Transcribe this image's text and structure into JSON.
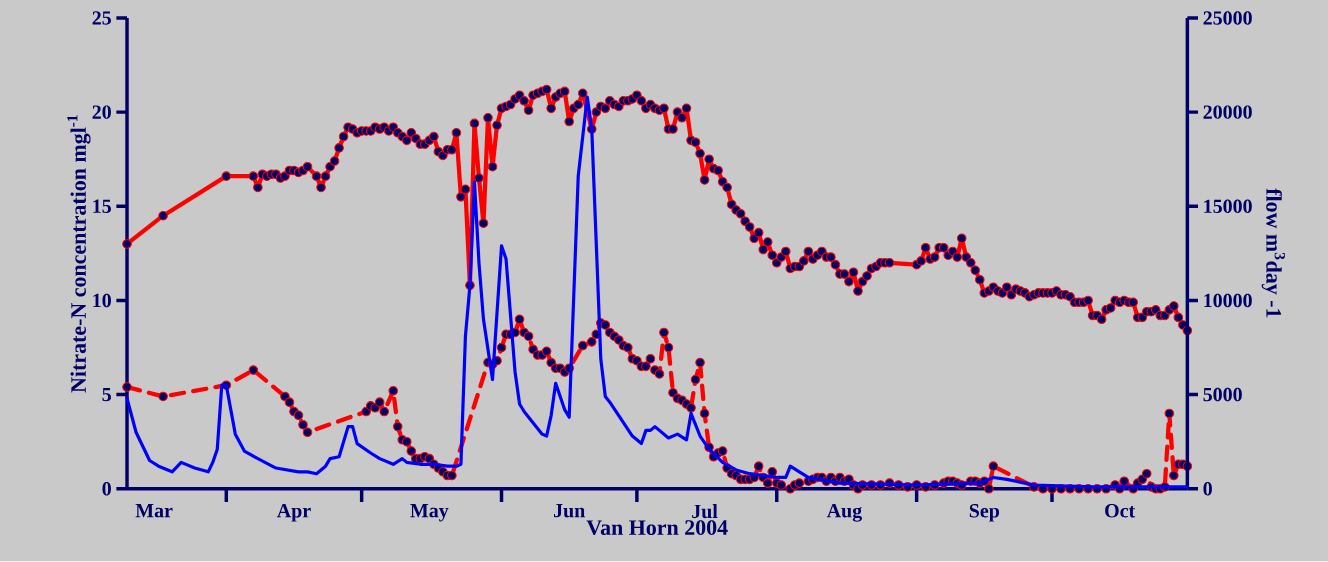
{
  "chart_data": {
    "type": "line",
    "xlabel": "Van Horn 2004",
    "ylabel": "Nitrate-N concentration mgl$^{-1}$",
    "y2label": "flow m$^{3}$day -1",
    "xlim": [
      "2004-03-10",
      "2004-10-31"
    ],
    "xticks": [
      {
        "value": "2004-03-16",
        "label": "Mar"
      },
      {
        "value": "2004-04-01",
        "label": null
      },
      {
        "value": "2004-04-16",
        "label": "Apr"
      },
      {
        "value": "2004-05-01",
        "label": null
      },
      {
        "value": "2004-05-16",
        "label": "May"
      },
      {
        "value": "2004-06-01",
        "label": null
      },
      {
        "value": "2004-06-16",
        "label": "Jun"
      },
      {
        "value": "2004-07-01",
        "label": null
      },
      {
        "value": "2004-07-16",
        "label": "Jul"
      },
      {
        "value": "2004-08-01",
        "label": null
      },
      {
        "value": "2004-08-16",
        "label": "Aug"
      },
      {
        "value": "2004-09-01",
        "label": null
      },
      {
        "value": "2004-09-16",
        "label": "Sep"
      },
      {
        "value": "2004-10-01",
        "label": null
      },
      {
        "value": "2004-10-16",
        "label": "Oct"
      }
    ],
    "ylim": [
      0,
      25
    ],
    "yticks": [
      0,
      5,
      10,
      15,
      20,
      25
    ],
    "y2lim": [
      0,
      25000
    ],
    "y2ticks": [
      0,
      5000,
      10000,
      15000,
      20000,
      25000
    ],
    "series": [
      {
        "color": "#ff0000",
        "marker": "circle",
        "line_style": "solid",
        "x": [
          "2004-03-10",
          "2004-03-18",
          "2004-04-01",
          "2004-04-07",
          "2004-04-08",
          "2004-04-09",
          "2004-04-10",
          "2004-04-11",
          "2004-04-12",
          "2004-04-13",
          "2004-04-14",
          "2004-04-15",
          "2004-04-16",
          "2004-04-17",
          "2004-04-18",
          "2004-04-19",
          "2004-04-21",
          "2004-04-22",
          "2004-04-23",
          "2004-04-24",
          "2004-04-25",
          "2004-04-26",
          "2004-04-27",
          "2004-04-28",
          "2004-04-29",
          "2004-04-30",
          "2004-05-01",
          "2004-05-02",
          "2004-05-03",
          "2004-05-04",
          "2004-05-05",
          "2004-05-06",
          "2004-05-07",
          "2004-05-08",
          "2004-05-09",
          "2004-05-10",
          "2004-05-11",
          "2004-05-12",
          "2004-05-13",
          "2004-05-14",
          "2004-05-15",
          "2004-05-16",
          "2004-05-17",
          "2004-05-18",
          "2004-05-19",
          "2004-05-20",
          "2004-05-21",
          "2004-05-22",
          "2004-05-23",
          "2004-05-24",
          "2004-05-25",
          "2004-05-26",
          "2004-05-27",
          "2004-05-28",
          "2004-05-29",
          "2004-05-30",
          "2004-05-31",
          "2004-06-01",
          "2004-06-02",
          "2004-06-03",
          "2004-06-04",
          "2004-06-05",
          "2004-06-06",
          "2004-06-07",
          "2004-06-08",
          "2004-06-09",
          "2004-06-10",
          "2004-06-11",
          "2004-06-12",
          "2004-06-13",
          "2004-06-14",
          "2004-06-15",
          "2004-06-16",
          "2004-06-17",
          "2004-06-18",
          "2004-06-19",
          "2004-06-21",
          "2004-06-22",
          "2004-06-23",
          "2004-06-24",
          "2004-06-25",
          "2004-06-26",
          "2004-06-27",
          "2004-06-28",
          "2004-06-29",
          "2004-06-30",
          "2004-07-01",
          "2004-07-02",
          "2004-07-03",
          "2004-07-04",
          "2004-07-05",
          "2004-07-06",
          "2004-07-07",
          "2004-07-08",
          "2004-07-09",
          "2004-07-10",
          "2004-07-11",
          "2004-07-12",
          "2004-07-13",
          "2004-07-14",
          "2004-07-15",
          "2004-07-16",
          "2004-07-17",
          "2004-07-18",
          "2004-07-19",
          "2004-07-20",
          "2004-07-21",
          "2004-07-22",
          "2004-07-23",
          "2004-07-24",
          "2004-07-25",
          "2004-07-26",
          "2004-07-27",
          "2004-07-28",
          "2004-07-29",
          "2004-07-30",
          "2004-07-31",
          "2004-08-01",
          "2004-08-02",
          "2004-08-03",
          "2004-08-04",
          "2004-08-05",
          "2004-08-06",
          "2004-08-07",
          "2004-08-08",
          "2004-08-09",
          "2004-08-10",
          "2004-08-11",
          "2004-08-12",
          "2004-08-13",
          "2004-08-14",
          "2004-08-15",
          "2004-08-16",
          "2004-08-17",
          "2004-08-18",
          "2004-08-19",
          "2004-08-20",
          "2004-08-21",
          "2004-08-22",
          "2004-08-23",
          "2004-08-24",
          "2004-08-25",
          "2004-08-26",
          "2004-09-01",
          "2004-09-02",
          "2004-09-03",
          "2004-09-04",
          "2004-09-05",
          "2004-09-06",
          "2004-09-07",
          "2004-09-08",
          "2004-09-09",
          "2004-09-10",
          "2004-09-11",
          "2004-09-12",
          "2004-09-13",
          "2004-09-14",
          "2004-09-15",
          "2004-09-16",
          "2004-09-17",
          "2004-09-18",
          "2004-09-19",
          "2004-09-20",
          "2004-09-21",
          "2004-09-22",
          "2004-09-23",
          "2004-09-24",
          "2004-09-25",
          "2004-09-26",
          "2004-09-27",
          "2004-09-28",
          "2004-09-29",
          "2004-09-30",
          "2004-10-01",
          "2004-10-02",
          "2004-10-03",
          "2004-10-04",
          "2004-10-05",
          "2004-10-06",
          "2004-10-07",
          "2004-10-08",
          "2004-10-09",
          "2004-10-10",
          "2004-10-11",
          "2004-10-12",
          "2004-10-13",
          "2004-10-14",
          "2004-10-15",
          "2004-10-16",
          "2004-10-17",
          "2004-10-18",
          "2004-10-19",
          "2004-10-20",
          "2004-10-21",
          "2004-10-22",
          "2004-10-23",
          "2004-10-24",
          "2004-10-25",
          "2004-10-26",
          "2004-10-27",
          "2004-10-28",
          "2004-10-29",
          "2004-10-30",
          "2004-10-31"
        ],
        "values": [
          13.0,
          14.5,
          16.6,
          16.6,
          16.0,
          16.7,
          16.6,
          16.7,
          16.7,
          16.5,
          16.6,
          16.9,
          16.9,
          16.8,
          16.9,
          17.1,
          16.6,
          16.0,
          16.6,
          17.1,
          17.4,
          18.1,
          18.7,
          19.2,
          19.1,
          18.9,
          19.0,
          19.0,
          19.0,
          19.2,
          19.1,
          19.2,
          19.0,
          19.2,
          18.9,
          18.7,
          18.5,
          18.9,
          18.6,
          18.3,
          18.3,
          18.5,
          18.7,
          17.9,
          17.7,
          18.0,
          18.0,
          18.9,
          15.5,
          15.9,
          10.8,
          19.4,
          16.5,
          14.1,
          19.7,
          17.1,
          19.3,
          20.2,
          20.3,
          20.4,
          20.7,
          20.9,
          20.6,
          20.1,
          20.9,
          21.0,
          21.1,
          21.2,
          20.2,
          20.8,
          21.0,
          21.1,
          19.5,
          20.2,
          20.4,
          21.0,
          19.1,
          20.0,
          20.3,
          20.2,
          20.6,
          20.4,
          20.3,
          20.6,
          20.6,
          20.7,
          20.9,
          20.6,
          20.2,
          20.4,
          20.2,
          20.1,
          20.2,
          19.1,
          19.1,
          20.0,
          19.7,
          20.2,
          18.5,
          18.4,
          17.8,
          16.4,
          17.5,
          17.0,
          16.9,
          16.3,
          16.0,
          15.1,
          14.8,
          14.6,
          14.2,
          13.9,
          13.3,
          13.6,
          12.7,
          13.1,
          12.4,
          12.0,
          12.3,
          12.6,
          11.7,
          11.8,
          11.8,
          12.1,
          12.6,
          12.2,
          12.4,
          12.6,
          12.3,
          12.3,
          11.9,
          11.4,
          11.4,
          11.0,
          11.5,
          10.5,
          11.0,
          11.3,
          11.7,
          11.8,
          12.0,
          12.0,
          12.0,
          11.9,
          12.1,
          12.8,
          12.2,
          12.3,
          12.8,
          12.8,
          12.4,
          12.6,
          12.3,
          13.3,
          12.3,
          12.0,
          11.6,
          11.1,
          10.4,
          10.5,
          10.7,
          10.5,
          10.4,
          10.7,
          10.3,
          10.6,
          10.5,
          10.4,
          10.2,
          10.3,
          10.4,
          10.4,
          10.4,
          10.4,
          10.5,
          10.3,
          10.3,
          10.2,
          9.9,
          9.9,
          9.9,
          10.0,
          9.2,
          9.2,
          9.0,
          9.5,
          9.6,
          10.0,
          9.9,
          10.0,
          9.9,
          9.9,
          9.1,
          9.1,
          9.4,
          9.4,
          9.5,
          9.2,
          9.2,
          9.5,
          9.7,
          9.1,
          8.7,
          8.4
        ]
      },
      {
        "color": "#ff0000",
        "marker": "circle",
        "line_style": "dashed",
        "x": [
          "2004-03-10",
          "2004-03-18",
          "2004-04-01",
          "2004-04-07",
          "2004-04-14",
          "2004-04-15",
          "2004-04-16",
          "2004-04-17",
          "2004-04-18",
          "2004-04-19",
          "2004-05-02",
          "2004-05-03",
          "2004-05-04",
          "2004-05-05",
          "2004-05-06",
          "2004-05-08",
          "2004-05-09",
          "2004-05-10",
          "2004-05-11",
          "2004-05-12",
          "2004-05-13",
          "2004-05-14",
          "2004-05-15",
          "2004-05-16",
          "2004-05-17",
          "2004-05-18",
          "2004-05-19",
          "2004-05-20",
          "2004-05-21",
          "2004-05-29",
          "2004-05-30",
          "2004-05-31",
          "2004-06-01",
          "2004-06-02",
          "2004-06-03",
          "2004-06-04",
          "2004-06-05",
          "2004-06-06",
          "2004-06-07",
          "2004-06-08",
          "2004-06-09",
          "2004-06-10",
          "2004-06-11",
          "2004-06-12",
          "2004-06-13",
          "2004-06-14",
          "2004-06-15",
          "2004-06-16",
          "2004-06-19",
          "2004-06-21",
          "2004-06-22",
          "2004-06-23",
          "2004-06-24",
          "2004-06-25",
          "2004-06-26",
          "2004-06-27",
          "2004-06-28",
          "2004-06-29",
          "2004-06-30",
          "2004-07-01",
          "2004-07-02",
          "2004-07-03",
          "2004-07-04",
          "2004-07-05",
          "2004-07-06",
          "2004-07-07",
          "2004-07-08",
          "2004-07-09",
          "2004-07-10",
          "2004-07-11",
          "2004-07-12",
          "2004-07-13",
          "2004-07-14",
          "2004-07-15",
          "2004-07-16",
          "2004-07-17",
          "2004-07-18",
          "2004-07-19",
          "2004-07-20",
          "2004-07-21",
          "2004-07-22",
          "2004-07-23",
          "2004-07-24",
          "2004-07-25",
          "2004-07-26",
          "2004-07-27",
          "2004-07-28",
          "2004-07-29",
          "2004-07-30",
          "2004-07-31",
          "2004-08-01",
          "2004-08-02",
          "2004-08-04",
          "2004-08-05",
          "2004-08-06",
          "2004-08-08",
          "2004-08-09",
          "2004-08-10",
          "2004-08-11",
          "2004-08-12",
          "2004-08-13",
          "2004-08-14",
          "2004-08-15",
          "2004-08-16",
          "2004-08-17",
          "2004-08-18",
          "2004-08-19",
          "2004-08-20",
          "2004-08-22",
          "2004-08-24",
          "2004-08-26",
          "2004-08-28",
          "2004-08-30",
          "2004-09-01",
          "2004-09-03",
          "2004-09-05",
          "2004-09-07",
          "2004-09-08",
          "2004-09-09",
          "2004-09-10",
          "2004-09-11",
          "2004-09-13",
          "2004-09-14",
          "2004-09-15",
          "2004-09-16",
          "2004-09-17",
          "2004-09-18",
          "2004-09-27",
          "2004-09-29",
          "2004-10-01",
          "2004-10-03",
          "2004-10-05",
          "2004-10-07",
          "2004-10-09",
          "2004-10-11",
          "2004-10-13",
          "2004-10-15",
          "2004-10-16",
          "2004-10-17",
          "2004-10-19",
          "2004-10-20",
          "2004-10-21",
          "2004-10-22",
          "2004-10-23",
          "2004-10-24",
          "2004-10-25",
          "2004-10-26",
          "2004-10-27",
          "2004-10-28",
          "2004-10-29",
          "2004-10-30",
          "2004-10-31"
        ],
        "values": [
          5.4,
          4.9,
          5.5,
          6.3,
          4.9,
          4.6,
          4.1,
          3.9,
          3.4,
          3.0,
          4.1,
          4.4,
          4.3,
          4.6,
          4.1,
          5.2,
          3.3,
          2.6,
          2.5,
          2.0,
          1.6,
          1.6,
          1.7,
          1.6,
          1.3,
          1.1,
          0.9,
          0.7,
          0.7,
          6.7,
          6.6,
          6.8,
          7.5,
          8.2,
          8.2,
          8.3,
          9.0,
          8.3,
          8.1,
          7.4,
          7.1,
          7.1,
          7.3,
          6.7,
          6.4,
          6.4,
          6.2,
          6.4,
          7.6,
          7.8,
          8.2,
          8.8,
          8.7,
          8.3,
          8.1,
          7.9,
          7.6,
          7.5,
          6.9,
          6.8,
          6.5,
          6.5,
          6.9,
          6.3,
          6.1,
          8.3,
          7.5,
          5.1,
          4.8,
          4.7,
          4.5,
          4.3,
          5.8,
          6.7,
          4.0,
          2.2,
          1.7,
          1.9,
          2.0,
          1.1,
          0.8,
          0.7,
          0.5,
          0.5,
          0.5,
          0.6,
          1.2,
          0.6,
          0.3,
          0.9,
          0.3,
          0.2,
          0.0,
          0.2,
          0.3,
          0.4,
          0.5,
          0.6,
          0.6,
          0.4,
          0.6,
          0.4,
          0.6,
          0.4,
          0.5,
          0.2,
          0.0,
          0.2,
          0.2,
          0.2,
          0.3,
          0.2,
          0.1,
          0.2,
          0.1,
          0.2,
          0.3,
          0.4,
          0.4,
          0.3,
          0.2,
          0.4,
          0.4,
          0.3,
          0.4,
          0.0,
          1.2,
          0.1,
          0.0,
          0.0,
          0.0,
          0.0,
          0.0,
          0.0,
          0.0,
          0.0,
          0.2,
          0.0,
          0.4,
          0.0,
          0.3,
          0.5,
          0.8,
          0.1,
          0.0,
          0.0,
          0.1,
          4.0,
          0.7,
          1.3,
          1.3,
          1.2
        ]
      },
      {
        "color": "#0000ff",
        "marker": "none",
        "line_style": "solid",
        "axis": "y2",
        "x": [
          "2004-03-10",
          "2004-03-12",
          "2004-03-15",
          "2004-03-17",
          "2004-03-20",
          "2004-03-22",
          "2004-03-25",
          "2004-03-28",
          "2004-03-29",
          "2004-03-30",
          "2004-03-31",
          "2004-04-01",
          "2004-04-02",
          "2004-04-03",
          "2004-04-05",
          "2004-04-08",
          "2004-04-12",
          "2004-04-17",
          "2004-04-19",
          "2004-04-21",
          "2004-04-23",
          "2004-04-24",
          "2004-04-26",
          "2004-04-28",
          "2004-04-29",
          "2004-04-30",
          "2004-05-03",
          "2004-05-05",
          "2004-05-08",
          "2004-05-10",
          "2004-05-11",
          "2004-05-14",
          "2004-05-17",
          "2004-05-20",
          "2004-05-22",
          "2004-05-23",
          "2004-05-24",
          "2004-05-25",
          "2004-05-26",
          "2004-05-27",
          "2004-05-28",
          "2004-05-30",
          "2004-06-01",
          "2004-06-02",
          "2004-06-04",
          "2004-06-05",
          "2004-06-06",
          "2004-06-10",
          "2004-06-11",
          "2004-06-12",
          "2004-06-13",
          "2004-06-14",
          "2004-06-15",
          "2004-06-16",
          "2004-06-18",
          "2004-06-20",
          "2004-06-21",
          "2004-06-23",
          "2004-06-24",
          "2004-06-25",
          "2004-06-30",
          "2004-07-02",
          "2004-07-03",
          "2004-07-04",
          "2004-07-05",
          "2004-07-08",
          "2004-07-10",
          "2004-07-12",
          "2004-07-13",
          "2004-07-15",
          "2004-07-17",
          "2004-07-20",
          "2004-07-23",
          "2004-07-26",
          "2004-08-01",
          "2004-08-03",
          "2004-08-04",
          "2004-08-06",
          "2004-08-08",
          "2004-08-15",
          "2004-09-01",
          "2004-09-15",
          "2004-09-18",
          "2004-09-21",
          "2004-09-27",
          "2004-10-10",
          "2004-10-31"
        ],
        "values": [
          4800,
          3000,
          1500,
          1200,
          900,
          1400,
          1100,
          900,
          1400,
          2100,
          5500,
          5500,
          4200,
          2900,
          2000,
          1600,
          1100,
          900,
          900,
          800,
          1200,
          1600,
          1700,
          3300,
          3300,
          2400,
          1900,
          1600,
          1300,
          1600,
          1400,
          1300,
          1300,
          1200,
          1200,
          1300,
          8100,
          10800,
          16300,
          12000,
          9000,
          5800,
          12900,
          12200,
          6200,
          4500,
          4100,
          2900,
          2800,
          3900,
          5600,
          4900,
          4200,
          3800,
          16600,
          20800,
          19100,
          6900,
          4900,
          4600,
          2800,
          2400,
          3100,
          3100,
          3300,
          2700,
          2900,
          2600,
          4000,
          2800,
          2100,
          1400,
          1000,
          800,
          600,
          600,
          1200,
          900,
          600,
          300,
          200,
          300,
          600,
          500,
          200,
          100,
          100
        ]
      }
    ]
  }
}
